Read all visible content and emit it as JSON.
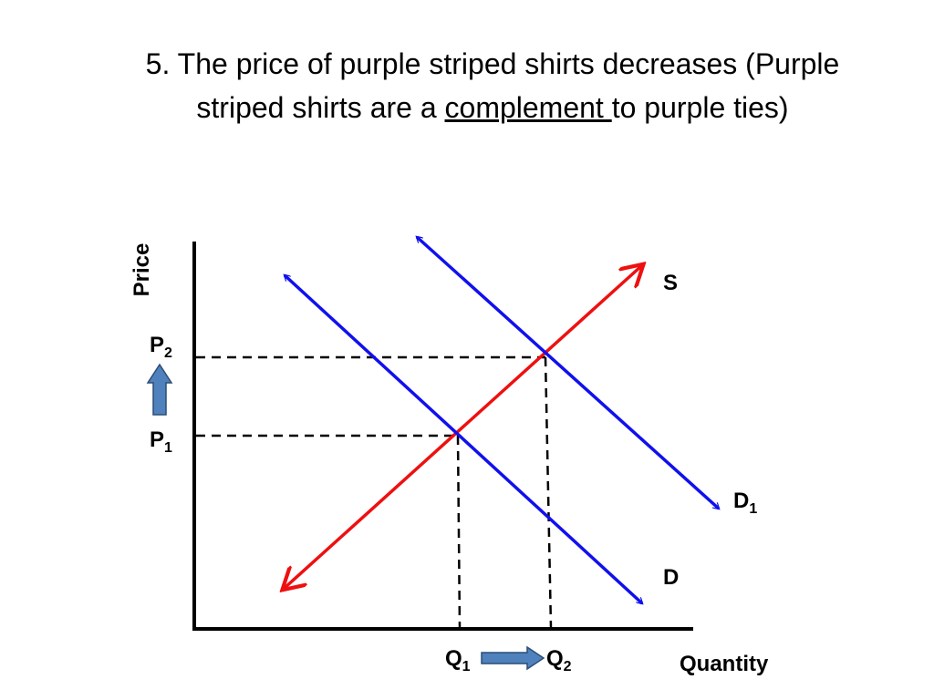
{
  "title": {
    "line1": "5. The price of purple striped shirts decreases (Purple",
    "line2_before": "striped shirts are a ",
    "line2_underlined": "complement ",
    "line2_after": "to purple ties)"
  },
  "axes": {
    "y": "Price",
    "x": "Quantity"
  },
  "labels": {
    "p2": {
      "main": "P",
      "sub": "2"
    },
    "p1": {
      "main": "P",
      "sub": "1"
    },
    "q1": {
      "main": "Q",
      "sub": "1"
    },
    "q2": {
      "main": "Q",
      "sub": "2"
    },
    "supply": "S",
    "d1": {
      "main": "D",
      "sub": "1"
    },
    "demand": "D"
  }
}
